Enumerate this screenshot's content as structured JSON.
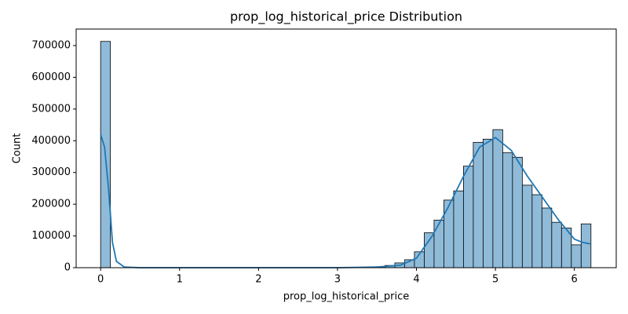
{
  "chart_data": {
    "type": "histogram",
    "title": "prop_log_historical_price Distribution",
    "x_label": "prop_log_historical_price",
    "y_label": "Count",
    "bins": [
      0,
      0.1242,
      0.2484,
      0.3726,
      0.4968,
      0.621,
      0.7452,
      0.8694,
      0.9936,
      1.1178,
      1.242,
      1.3662,
      1.4904,
      1.6146,
      1.7388,
      1.863,
      1.9872,
      2.1114,
      2.2356,
      2.3598,
      2.484,
      2.6082,
      2.7324,
      2.8566,
      2.9808,
      3.105,
      3.2292,
      3.3534,
      3.4776,
      3.6018,
      3.726,
      3.8502,
      3.9744,
      4.0986,
      4.2228,
      4.347,
      4.4712,
      4.5954,
      4.7196,
      4.8438,
      4.968,
      5.0922,
      5.2164,
      5.3406,
      5.4648,
      5.589,
      5.7132,
      5.8374,
      5.9616,
      6.0858,
      6.21
    ],
    "values": [
      713000,
      0,
      0,
      0,
      0,
      0,
      0,
      0,
      0,
      0,
      0,
      0,
      0,
      0,
      0,
      0,
      0,
      0,
      0,
      0,
      0,
      0,
      0,
      0,
      0,
      0,
      0,
      0,
      3000,
      7000,
      15000,
      25000,
      50000,
      110000,
      150000,
      213000,
      242000,
      320000,
      395000,
      405000,
      435000,
      362000,
      348000,
      260000,
      230000,
      188000,
      143000,
      125000,
      72000,
      138000
    ],
    "color": "#8fbbd9",
    "kde": {
      "color": "#1f77b4",
      "x": [
        0,
        0.05,
        0.1,
        0.15,
        0.2,
        0.3,
        0.5,
        1,
        2,
        3,
        3.5,
        3.8,
        4,
        4.2,
        4.4,
        4.6,
        4.8,
        5,
        5.2,
        5.4,
        5.6,
        5.8,
        6,
        6.1,
        6.2
      ],
      "values": [
        420000,
        380000,
        250000,
        80000,
        20000,
        2000,
        0,
        0,
        0,
        0,
        2000,
        8000,
        30000,
        100000,
        190000,
        290000,
        380000,
        410000,
        370000,
        290000,
        220000,
        150000,
        90000,
        80000,
        75000
      ]
    },
    "xlim": [
      -0.31,
      6.53
    ],
    "xticks": [
      0,
      1,
      2,
      3,
      4,
      5,
      6
    ],
    "ylim": [
      0,
      752000
    ],
    "yticks": [
      0,
      100000,
      200000,
      300000,
      400000,
      500000,
      600000,
      700000
    ]
  }
}
